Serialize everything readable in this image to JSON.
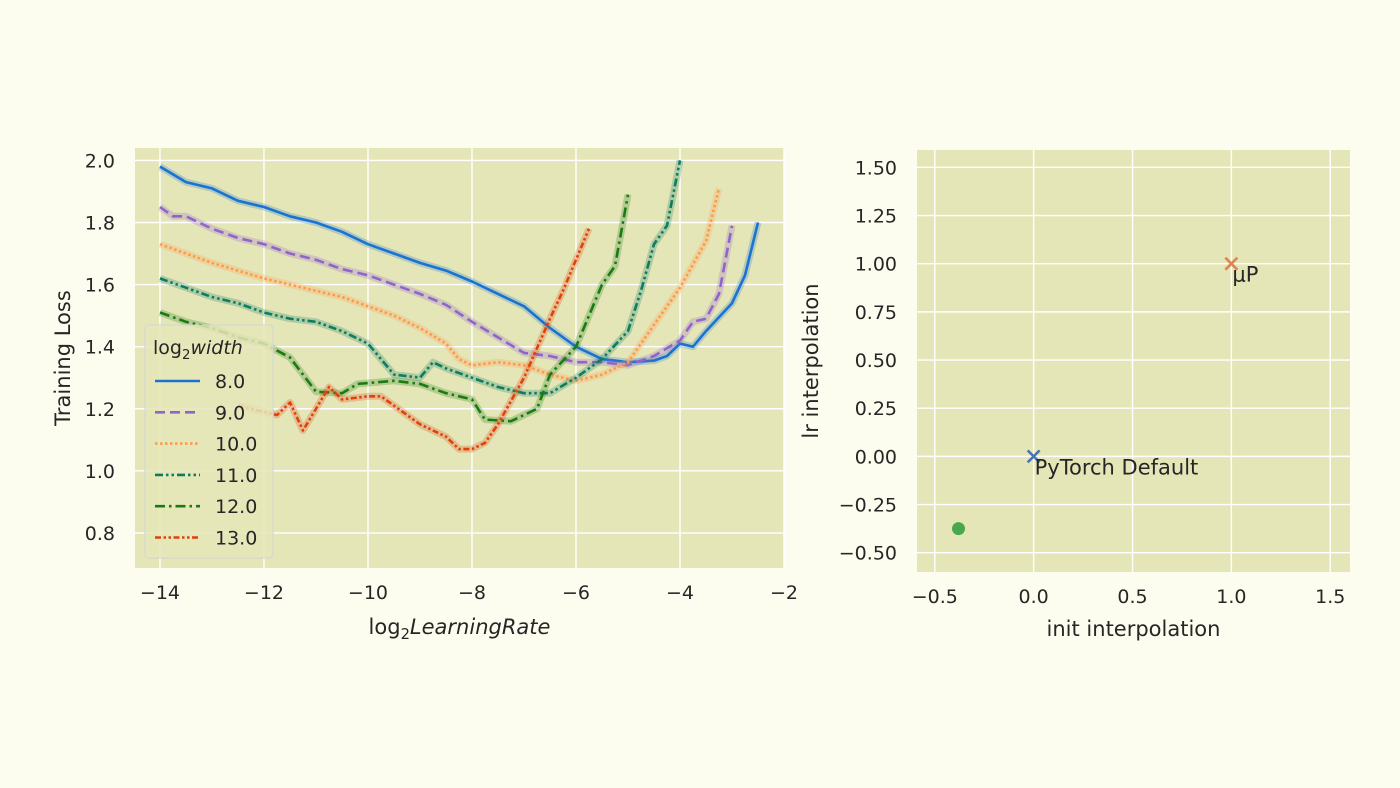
{
  "chart_data": [
    {
      "type": "line",
      "title": "",
      "xlabel": {
        "prefix": "log",
        "subscript": "2",
        "italic": "LearningRate"
      },
      "ylabel": "Training Loss",
      "xlim": [
        -14.48,
        -2.0
      ],
      "ylim": [
        0.687,
        2.04
      ],
      "x_ticks": [
        -14,
        -12,
        -10,
        -8,
        -6,
        -4,
        -2
      ],
      "x_tick_labels": [
        "−14",
        "−12",
        "−10",
        "−8",
        "−6",
        "−4",
        "−2"
      ],
      "y_ticks": [
        0.8,
        1.0,
        1.2,
        1.4,
        1.6,
        1.8,
        2.0
      ],
      "y_tick_labels": [
        "0.8",
        "1.0",
        "1.2",
        "1.4",
        "1.6",
        "1.8",
        "2.0"
      ],
      "grid": true,
      "background_color": "#e5e6b8",
      "legend": {
        "placement": "lower-left",
        "title": {
          "prefix": "log",
          "subscript": "2",
          "italic": "width"
        }
      },
      "series": [
        {
          "name": "8.0",
          "color": "#1a72d1",
          "style": "solid",
          "points": [
            [
              -14,
              1.98
            ],
            [
              -13.5,
              1.93
            ],
            [
              -13,
              1.91
            ],
            [
              -12.5,
              1.87
            ],
            [
              -12,
              1.85
            ],
            [
              -11.5,
              1.82
            ],
            [
              -11,
              1.8
            ],
            [
              -10.5,
              1.77
            ],
            [
              -10,
              1.73
            ],
            [
              -9.5,
              1.7
            ],
            [
              -9,
              1.67
            ],
            [
              -8.5,
              1.645
            ],
            [
              -8,
              1.61
            ],
            [
              -7.5,
              1.57
            ],
            [
              -7,
              1.53
            ],
            [
              -6.5,
              1.46
            ],
            [
              -6,
              1.4
            ],
            [
              -5.5,
              1.36
            ],
            [
              -5,
              1.35
            ],
            [
              -4.5,
              1.355
            ],
            [
              -4.25,
              1.37
            ],
            [
              -4,
              1.41
            ],
            [
              -3.75,
              1.4
            ],
            [
              -3.5,
              1.45
            ],
            [
              -3,
              1.54
            ],
            [
              -2.75,
              1.63
            ],
            [
              -2.5,
              1.8
            ]
          ]
        },
        {
          "name": "9.0",
          "color": "#8f65c9",
          "style": "dashed",
          "points": [
            [
              -14,
              1.85
            ],
            [
              -13.75,
              1.82
            ],
            [
              -13.5,
              1.82
            ],
            [
              -13,
              1.78
            ],
            [
              -12.5,
              1.75
            ],
            [
              -12,
              1.73
            ],
            [
              -11.5,
              1.7
            ],
            [
              -11,
              1.68
            ],
            [
              -10.5,
              1.65
            ],
            [
              -10,
              1.63
            ],
            [
              -9.5,
              1.6
            ],
            [
              -9,
              1.57
            ],
            [
              -8.5,
              1.535
            ],
            [
              -8,
              1.48
            ],
            [
              -7.5,
              1.43
            ],
            [
              -7,
              1.38
            ],
            [
              -6.5,
              1.37
            ],
            [
              -6,
              1.35
            ],
            [
              -5.5,
              1.35
            ],
            [
              -5,
              1.34
            ],
            [
              -4.5,
              1.37
            ],
            [
              -4,
              1.42
            ],
            [
              -3.75,
              1.48
            ],
            [
              -3.5,
              1.49
            ],
            [
              -3.25,
              1.57
            ],
            [
              -3,
              1.79
            ]
          ]
        },
        {
          "name": "10.0",
          "color": "#ff9a4d",
          "style": "dotted",
          "points": [
            [
              -14,
              1.73
            ],
            [
              -13.5,
              1.7
            ],
            [
              -13,
              1.67
            ],
            [
              -12.5,
              1.645
            ],
            [
              -12,
              1.62
            ],
            [
              -11.5,
              1.6
            ],
            [
              -11,
              1.58
            ],
            [
              -10.5,
              1.56
            ],
            [
              -10,
              1.53
            ],
            [
              -9.5,
              1.5
            ],
            [
              -9,
              1.46
            ],
            [
              -8.5,
              1.41
            ],
            [
              -8.25,
              1.36
            ],
            [
              -8,
              1.34
            ],
            [
              -7.5,
              1.35
            ],
            [
              -7,
              1.34
            ],
            [
              -6.5,
              1.31
            ],
            [
              -6,
              1.29
            ],
            [
              -5.5,
              1.31
            ],
            [
              -5,
              1.35
            ],
            [
              -4.5,
              1.47
            ],
            [
              -4,
              1.59
            ],
            [
              -3.5,
              1.74
            ],
            [
              -3.25,
              1.91
            ]
          ]
        },
        {
          "name": "11.0",
          "color": "#0e7d5f",
          "style": "dash-dot-dot",
          "points": [
            [
              -14,
              1.62
            ],
            [
              -13.5,
              1.59
            ],
            [
              -13,
              1.56
            ],
            [
              -12.5,
              1.54
            ],
            [
              -12,
              1.51
            ],
            [
              -11.5,
              1.49
            ],
            [
              -11,
              1.48
            ],
            [
              -10.5,
              1.45
            ],
            [
              -10,
              1.41
            ],
            [
              -9.5,
              1.31
            ],
            [
              -9,
              1.3
            ],
            [
              -8.75,
              1.35
            ],
            [
              -8.5,
              1.33
            ],
            [
              -8,
              1.3
            ],
            [
              -7.5,
              1.27
            ],
            [
              -7,
              1.25
            ],
            [
              -6.5,
              1.25
            ],
            [
              -6,
              1.3
            ],
            [
              -5.5,
              1.36
            ],
            [
              -5,
              1.45
            ],
            [
              -4.75,
              1.58
            ],
            [
              -4.5,
              1.73
            ],
            [
              -4.25,
              1.79
            ],
            [
              -4,
              2.0
            ]
          ]
        },
        {
          "name": "12.0",
          "color": "#1c7a12",
          "style": "dash-dot",
          "points": [
            [
              -14,
              1.51
            ],
            [
              -13.5,
              1.48
            ],
            [
              -13,
              1.46
            ],
            [
              -12.5,
              1.43
            ],
            [
              -12,
              1.41
            ],
            [
              -11.5,
              1.365
            ],
            [
              -11,
              1.255
            ],
            [
              -10.5,
              1.25
            ],
            [
              -10.2,
              1.28
            ],
            [
              -9.5,
              1.29
            ],
            [
              -9,
              1.28
            ],
            [
              -8.5,
              1.25
            ],
            [
              -8,
              1.23
            ],
            [
              -7.75,
              1.165
            ],
            [
              -7.25,
              1.16
            ],
            [
              -6.75,
              1.2
            ],
            [
              -6.5,
              1.31
            ],
            [
              -6,
              1.4
            ],
            [
              -5.5,
              1.6
            ],
            [
              -5.25,
              1.66
            ],
            [
              -5,
              1.89
            ]
          ]
        },
        {
          "name": "13.0",
          "color": "#e0420c",
          "style": "dash-dot-dot-dense",
          "points": [
            [
              -12.5,
              1.21
            ],
            [
              -12,
              1.19
            ],
            [
              -11.75,
              1.18
            ],
            [
              -11.5,
              1.22
            ],
            [
              -11.25,
              1.13
            ],
            [
              -10.75,
              1.27
            ],
            [
              -10.5,
              1.23
            ],
            [
              -10,
              1.24
            ],
            [
              -9.75,
              1.24
            ],
            [
              -9.25,
              1.18
            ],
            [
              -9,
              1.15
            ],
            [
              -8.5,
              1.11
            ],
            [
              -8.25,
              1.07
            ],
            [
              -8,
              1.07
            ],
            [
              -7.75,
              1.09
            ],
            [
              -7.5,
              1.15
            ],
            [
              -7,
              1.3
            ],
            [
              -6.5,
              1.49
            ],
            [
              -6.25,
              1.58
            ],
            [
              -5.75,
              1.78
            ]
          ]
        }
      ]
    },
    {
      "type": "scatter",
      "title": "",
      "xlabel": "init interpolation",
      "ylabel": "lr interpolation",
      "xlim": [
        -0.59,
        1.6
      ],
      "ylim": [
        -0.6,
        1.59
      ],
      "x_ticks": [
        -0.5,
        0.0,
        0.5,
        1.0,
        1.5
      ],
      "x_tick_labels": [
        "−0.5",
        "0.0",
        "0.5",
        "1.0",
        "1.5"
      ],
      "y_ticks": [
        -0.5,
        -0.25,
        0.0,
        0.25,
        0.5,
        0.75,
        1.0,
        1.25,
        1.5
      ],
      "y_tick_labels": [
        "−0.50",
        "−0.25",
        "0.00",
        "0.25",
        "0.50",
        "0.75",
        "1.00",
        "1.25",
        "1.50"
      ],
      "grid": true,
      "background_color": "#e5e6b8",
      "points": [
        {
          "x": 0.0,
          "y": 0.0,
          "marker": "x",
          "color": "#4c72b0",
          "label": "PyTorch Default"
        },
        {
          "x": 1.0,
          "y": 1.0,
          "marker": "x",
          "color": "#dd8452",
          "label": "μP"
        },
        {
          "x": -0.38,
          "y": -0.375,
          "marker": "circle",
          "color": "#4aa84c",
          "label": ""
        }
      ]
    }
  ]
}
